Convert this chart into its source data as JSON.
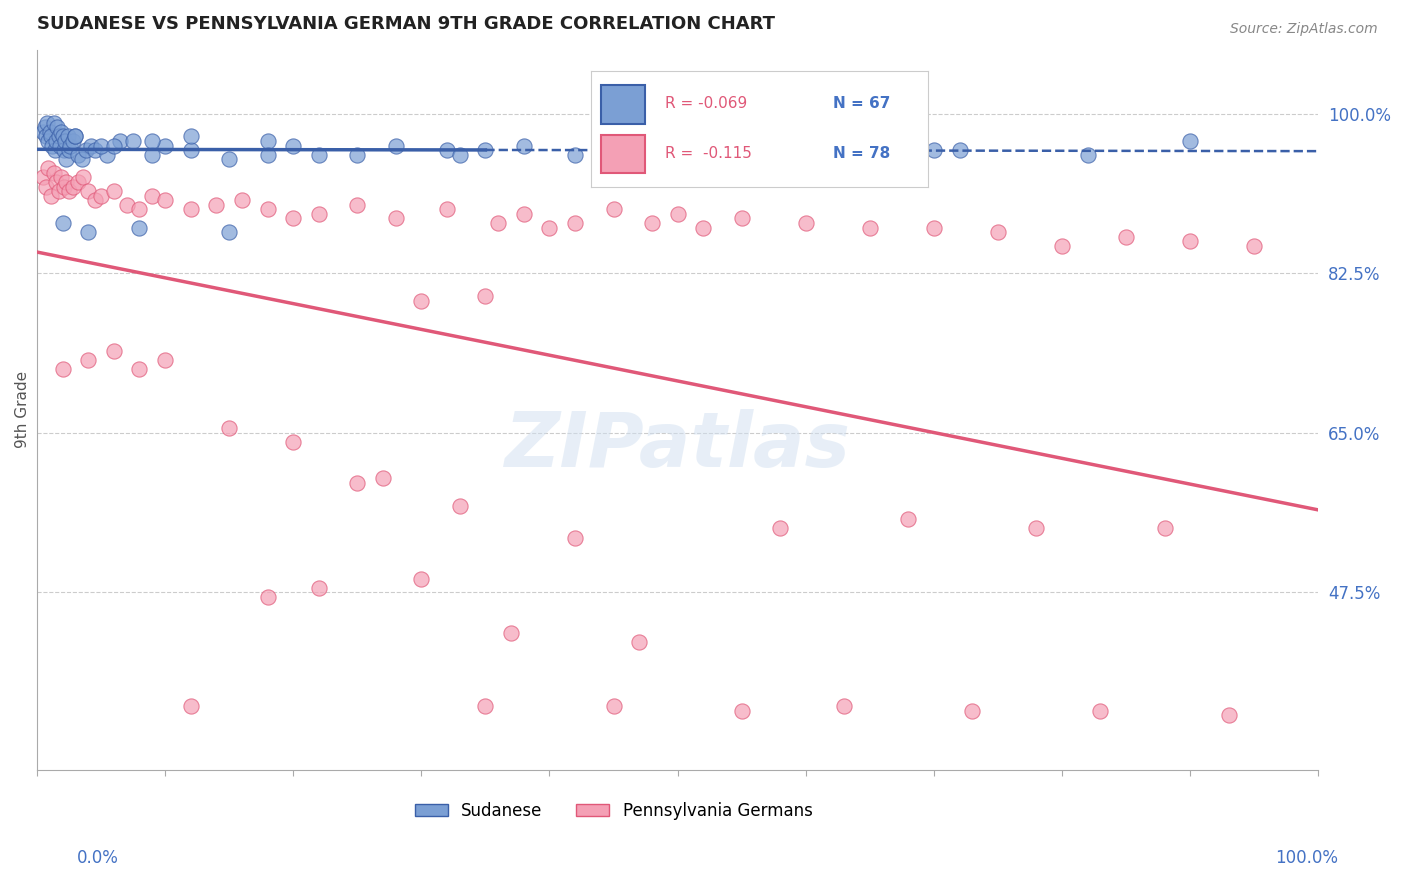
{
  "title": "SUDANESE VS PENNSYLVANIA GERMAN 9TH GRADE CORRELATION CHART",
  "source": "Source: ZipAtlas.com",
  "ylabel": "9th Grade",
  "ylabel_right_ticks": [
    "100.0%",
    "82.5%",
    "65.0%",
    "47.5%"
  ],
  "ylabel_right_values": [
    1.0,
    0.825,
    0.65,
    0.475
  ],
  "xmin": 0.0,
  "xmax": 1.0,
  "ymin": 0.28,
  "ymax": 1.07,
  "legend_R1": "-0.069",
  "legend_N1": "67",
  "legend_R2": "-0.115",
  "legend_N2": "78",
  "blue_color": "#7b9fd4",
  "pink_color": "#f4a0b5",
  "blue_line_color": "#3a5fa8",
  "pink_line_color": "#e05878",
  "blue_scatter_x": [
    0.005,
    0.006,
    0.007,
    0.008,
    0.009,
    0.01,
    0.011,
    0.012,
    0.013,
    0.014,
    0.015,
    0.016,
    0.017,
    0.018,
    0.019,
    0.02,
    0.021,
    0.022,
    0.023,
    0.024,
    0.025,
    0.026,
    0.028,
    0.03,
    0.032,
    0.035,
    0.038,
    0.042,
    0.045,
    0.055,
    0.065,
    0.075,
    0.09,
    0.1,
    0.12,
    0.15,
    0.18,
    0.22,
    0.28,
    0.35,
    0.42,
    0.5,
    0.6,
    0.7,
    0.52,
    0.38,
    0.25,
    0.15,
    0.08,
    0.04,
    0.02,
    0.48,
    0.32,
    0.18,
    0.09,
    0.05,
    0.03,
    0.62,
    0.72,
    0.82,
    0.9,
    0.58,
    0.45,
    0.33,
    0.2,
    0.12,
    0.06
  ],
  "blue_scatter_y": [
    0.98,
    0.985,
    0.975,
    0.99,
    0.97,
    0.98,
    0.975,
    0.965,
    0.99,
    0.96,
    0.97,
    0.985,
    0.975,
    0.965,
    0.98,
    0.975,
    0.96,
    0.97,
    0.95,
    0.975,
    0.96,
    0.965,
    0.97,
    0.975,
    0.955,
    0.95,
    0.96,
    0.965,
    0.96,
    0.955,
    0.97,
    0.97,
    0.955,
    0.965,
    0.96,
    0.95,
    0.97,
    0.955,
    0.965,
    0.96,
    0.955,
    0.96,
    0.965,
    0.96,
    0.955,
    0.965,
    0.955,
    0.87,
    0.875,
    0.87,
    0.88,
    0.965,
    0.96,
    0.955,
    0.97,
    0.965,
    0.975,
    0.965,
    0.96,
    0.955,
    0.97,
    0.965,
    0.97,
    0.955,
    0.965,
    0.975,
    0.965
  ],
  "pink_scatter_x": [
    0.005,
    0.007,
    0.009,
    0.011,
    0.013,
    0.015,
    0.017,
    0.019,
    0.021,
    0.023,
    0.025,
    0.028,
    0.032,
    0.036,
    0.04,
    0.045,
    0.05,
    0.06,
    0.07,
    0.08,
    0.09,
    0.1,
    0.12,
    0.14,
    0.16,
    0.18,
    0.2,
    0.22,
    0.25,
    0.28,
    0.32,
    0.36,
    0.4,
    0.45,
    0.5,
    0.55,
    0.6,
    0.65,
    0.7,
    0.75,
    0.8,
    0.85,
    0.9,
    0.95,
    0.38,
    0.42,
    0.48,
    0.52,
    0.3,
    0.35,
    0.15,
    0.2,
    0.25,
    0.1,
    0.08,
    0.06,
    0.04,
    0.02,
    0.33,
    0.27,
    0.42,
    0.58,
    0.68,
    0.78,
    0.88,
    0.3,
    0.22,
    0.18,
    0.12,
    0.35,
    0.45,
    0.55,
    0.63,
    0.73,
    0.83,
    0.93,
    0.47,
    0.37
  ],
  "pink_scatter_y": [
    0.93,
    0.92,
    0.94,
    0.91,
    0.935,
    0.925,
    0.915,
    0.93,
    0.92,
    0.925,
    0.915,
    0.92,
    0.925,
    0.93,
    0.915,
    0.905,
    0.91,
    0.915,
    0.9,
    0.895,
    0.91,
    0.905,
    0.895,
    0.9,
    0.905,
    0.895,
    0.885,
    0.89,
    0.9,
    0.885,
    0.895,
    0.88,
    0.875,
    0.895,
    0.89,
    0.885,
    0.88,
    0.875,
    0.875,
    0.87,
    0.855,
    0.865,
    0.86,
    0.855,
    0.89,
    0.88,
    0.88,
    0.875,
    0.795,
    0.8,
    0.655,
    0.64,
    0.595,
    0.73,
    0.72,
    0.74,
    0.73,
    0.72,
    0.57,
    0.6,
    0.535,
    0.545,
    0.555,
    0.545,
    0.545,
    0.49,
    0.48,
    0.47,
    0.35,
    0.35,
    0.35,
    0.345,
    0.35,
    0.345,
    0.345,
    0.34,
    0.42,
    0.43
  ],
  "background_color": "#ffffff",
  "grid_color": "#cccccc"
}
